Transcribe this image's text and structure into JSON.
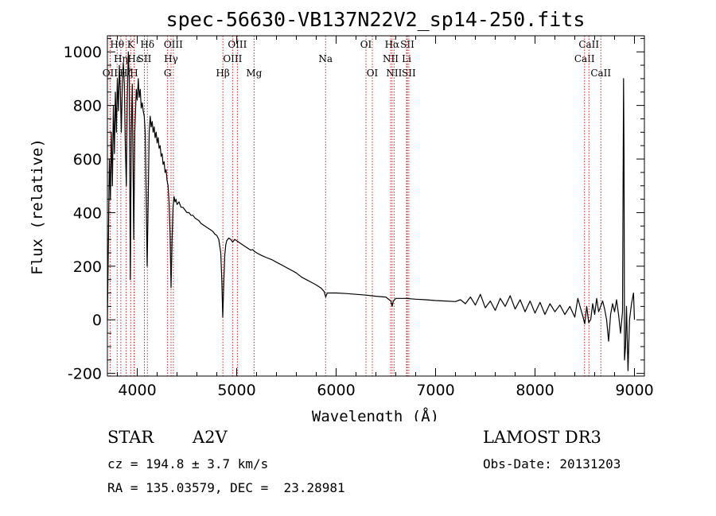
{
  "chart_data": {
    "type": "line",
    "title": "spec-56630-VB137N22V2_sp14-250.fits",
    "xlabel": "Wavelength (Å)",
    "ylabel": "Flux (relative)",
    "xlim": [
      3700,
      9100
    ],
    "ylim": [
      -210,
      1060
    ],
    "xticks": [
      4000,
      5000,
      6000,
      7000,
      8000,
      9000
    ],
    "yticks": [
      -200,
      0,
      200,
      400,
      600,
      800,
      1000
    ],
    "line_color": "#000000",
    "marker_color": "#cc2222",
    "spectral_lines": [
      {
        "name": "OII",
        "wavelength": 3727,
        "row": 2
      },
      {
        "name": "Hθ",
        "wavelength": 3798,
        "row": 0
      },
      {
        "name": "Hη",
        "wavelength": 3835,
        "row": 1
      },
      {
        "name": "Hζ",
        "wavelength": 3889,
        "row": 2
      },
      {
        "name": "K",
        "wavelength": 3934,
        "row": 0
      },
      {
        "name": "H",
        "wavelength": 3968,
        "row": 2
      },
      {
        "name": "Hε",
        "wavelength": 3970,
        "row": 1
      },
      {
        "name": "SII",
        "wavelength": 4072,
        "row": 1
      },
      {
        "name": "Hδ",
        "wavelength": 4102,
        "row": 0
      },
      {
        "name": "G",
        "wavelength": 4305,
        "row": 2
      },
      {
        "name": "Hγ",
        "wavelength": 4340,
        "row": 1
      },
      {
        "name": "OIII",
        "wavelength": 4363,
        "row": 0
      },
      {
        "name": "Hβ",
        "wavelength": 4861,
        "row": 2
      },
      {
        "name": "OIII",
        "wavelength": 4959,
        "row": 1
      },
      {
        "name": "OIII",
        "wavelength": 5007,
        "row": 0
      },
      {
        "name": "Mg",
        "wavelength": 5175,
        "row": 2
      },
      {
        "name": "Na",
        "wavelength": 5894,
        "row": 1
      },
      {
        "name": "OI",
        "wavelength": 6300,
        "row": 0
      },
      {
        "name": "OI",
        "wavelength": 6364,
        "row": 2
      },
      {
        "name": "NII",
        "wavelength": 6548,
        "row": 1
      },
      {
        "name": "Hα",
        "wavelength": 6563,
        "row": 0
      },
      {
        "name": "NII",
        "wavelength": 6583,
        "row": 2
      },
      {
        "name": "Li",
        "wavelength": 6708,
        "row": 1
      },
      {
        "name": "SII",
        "wavelength": 6716,
        "row": 0
      },
      {
        "name": "SII",
        "wavelength": 6731,
        "row": 2
      },
      {
        "name": "CaII",
        "wavelength": 8498,
        "row": 1
      },
      {
        "name": "CaII",
        "wavelength": 8542,
        "row": 0
      },
      {
        "name": "CaII",
        "wavelength": 8662,
        "row": 2
      }
    ],
    "series": [
      {
        "name": "flux",
        "points": [
          [
            3700,
            0
          ],
          [
            3710,
            300
          ],
          [
            3720,
            600
          ],
          [
            3730,
            450
          ],
          [
            3740,
            700
          ],
          [
            3750,
            500
          ],
          [
            3760,
            800
          ],
          [
            3770,
            620
          ],
          [
            3780,
            850
          ],
          [
            3790,
            700
          ],
          [
            3800,
            900
          ],
          [
            3810,
            780
          ],
          [
            3820,
            950
          ],
          [
            3830,
            850
          ],
          [
            3840,
            700
          ],
          [
            3850,
            880
          ],
          [
            3860,
            960
          ],
          [
            3870,
            880
          ],
          [
            3880,
            650
          ],
          [
            3890,
            500
          ],
          [
            3900,
            820
          ],
          [
            3910,
            1000
          ],
          [
            3920,
            900
          ],
          [
            3930,
            150
          ],
          [
            3940,
            700
          ],
          [
            3950,
            880
          ],
          [
            3960,
            500
          ],
          [
            3965,
            300
          ],
          [
            3975,
            700
          ],
          [
            3990,
            860
          ],
          [
            4000,
            820
          ],
          [
            4010,
            900
          ],
          [
            4020,
            830
          ],
          [
            4030,
            860
          ],
          [
            4040,
            790
          ],
          [
            4050,
            810
          ],
          [
            4060,
            780
          ],
          [
            4070,
            760
          ],
          [
            4080,
            700
          ],
          [
            4090,
            450
          ],
          [
            4100,
            200
          ],
          [
            4110,
            450
          ],
          [
            4120,
            700
          ],
          [
            4130,
            760
          ],
          [
            4140,
            720
          ],
          [
            4150,
            740
          ],
          [
            4160,
            700
          ],
          [
            4170,
            720
          ],
          [
            4180,
            680
          ],
          [
            4190,
            700
          ],
          [
            4200,
            660
          ],
          [
            4210,
            680
          ],
          [
            4220,
            640
          ],
          [
            4230,
            650
          ],
          [
            4240,
            610
          ],
          [
            4250,
            620
          ],
          [
            4260,
            580
          ],
          [
            4270,
            590
          ],
          [
            4280,
            550
          ],
          [
            4290,
            560
          ],
          [
            4300,
            520
          ],
          [
            4310,
            500
          ],
          [
            4320,
            440
          ],
          [
            4330,
            320
          ],
          [
            4340,
            120
          ],
          [
            4350,
            300
          ],
          [
            4360,
            420
          ],
          [
            4370,
            460
          ],
          [
            4380,
            440
          ],
          [
            4390,
            450
          ],
          [
            4400,
            430
          ],
          [
            4420,
            440
          ],
          [
            4440,
            420
          ],
          [
            4460,
            420
          ],
          [
            4480,
            410
          ],
          [
            4500,
            400
          ],
          [
            4520,
            400
          ],
          [
            4540,
            390
          ],
          [
            4560,
            390
          ],
          [
            4580,
            380
          ],
          [
            4600,
            375
          ],
          [
            4620,
            370
          ],
          [
            4640,
            360
          ],
          [
            4660,
            355
          ],
          [
            4680,
            350
          ],
          [
            4700,
            345
          ],
          [
            4720,
            340
          ],
          [
            4740,
            335
          ],
          [
            4760,
            330
          ],
          [
            4780,
            320
          ],
          [
            4800,
            315
          ],
          [
            4820,
            300
          ],
          [
            4840,
            250
          ],
          [
            4850,
            150
          ],
          [
            4860,
            10
          ],
          [
            4870,
            140
          ],
          [
            4880,
            240
          ],
          [
            4890,
            280
          ],
          [
            4900,
            295
          ],
          [
            4920,
            305
          ],
          [
            4940,
            300
          ],
          [
            4960,
            290
          ],
          [
            4980,
            300
          ],
          [
            5000,
            295
          ],
          [
            5020,
            290
          ],
          [
            5040,
            285
          ],
          [
            5060,
            280
          ],
          [
            5080,
            275
          ],
          [
            5100,
            270
          ],
          [
            5120,
            265
          ],
          [
            5140,
            260
          ],
          [
            5160,
            262
          ],
          [
            5180,
            255
          ],
          [
            5200,
            250
          ],
          [
            5250,
            240
          ],
          [
            5300,
            232
          ],
          [
            5350,
            225
          ],
          [
            5400,
            215
          ],
          [
            5450,
            205
          ],
          [
            5500,
            195
          ],
          [
            5550,
            185
          ],
          [
            5600,
            175
          ],
          [
            5650,
            160
          ],
          [
            5700,
            150
          ],
          [
            5750,
            140
          ],
          [
            5800,
            130
          ],
          [
            5850,
            118
          ],
          [
            5880,
            105
          ],
          [
            5895,
            85
          ],
          [
            5910,
            100
          ],
          [
            5950,
            100
          ],
          [
            6000,
            100
          ],
          [
            6100,
            98
          ],
          [
            6200,
            95
          ],
          [
            6300,
            92
          ],
          [
            6400,
            88
          ],
          [
            6500,
            85
          ],
          [
            6550,
            70
          ],
          [
            6563,
            50
          ],
          [
            6575,
            70
          ],
          [
            6600,
            80
          ],
          [
            6700,
            80
          ],
          [
            6800,
            77
          ],
          [
            6900,
            75
          ],
          [
            7000,
            72
          ],
          [
            7100,
            70
          ],
          [
            7200,
            68
          ],
          [
            7250,
            75
          ],
          [
            7300,
            60
          ],
          [
            7350,
            85
          ],
          [
            7400,
            55
          ],
          [
            7450,
            95
          ],
          [
            7500,
            45
          ],
          [
            7550,
            70
          ],
          [
            7600,
            35
          ],
          [
            7650,
            80
          ],
          [
            7700,
            50
          ],
          [
            7750,
            90
          ],
          [
            7800,
            40
          ],
          [
            7850,
            75
          ],
          [
            7900,
            30
          ],
          [
            7950,
            70
          ],
          [
            8000,
            25
          ],
          [
            8050,
            65
          ],
          [
            8100,
            20
          ],
          [
            8150,
            60
          ],
          [
            8200,
            30
          ],
          [
            8250,
            55
          ],
          [
            8300,
            20
          ],
          [
            8350,
            50
          ],
          [
            8400,
            10
          ],
          [
            8430,
            80
          ],
          [
            8460,
            40
          ],
          [
            8480,
            15
          ],
          [
            8500,
            -15
          ],
          [
            8520,
            50
          ],
          [
            8540,
            -10
          ],
          [
            8560,
            0
          ],
          [
            8580,
            60
          ],
          [
            8600,
            20
          ],
          [
            8620,
            80
          ],
          [
            8640,
            30
          ],
          [
            8660,
            50
          ],
          [
            8680,
            70
          ],
          [
            8700,
            40
          ],
          [
            8720,
            0
          ],
          [
            8740,
            -80
          ],
          [
            8760,
            20
          ],
          [
            8780,
            60
          ],
          [
            8800,
            30
          ],
          [
            8820,
            75
          ],
          [
            8840,
            20
          ],
          [
            8860,
            -50
          ],
          [
            8880,
            30
          ],
          [
            8890,
            900
          ],
          [
            8895,
            600
          ],
          [
            8900,
            -150
          ],
          [
            8910,
            -100
          ],
          [
            8920,
            50
          ],
          [
            8935,
            -190
          ],
          [
            8950,
            0
          ],
          [
            8970,
            60
          ],
          [
            8990,
            100
          ],
          [
            9000,
            0
          ]
        ]
      }
    ]
  },
  "info": {
    "object_type": "STAR",
    "spectral_class": "A2V",
    "survey": "LAMOST DR3",
    "redshift": "cz = 194.8 ± 3.7 km/s",
    "obs_date": "Obs-Date: 20131203",
    "coordinates": "RA = 135.03579, DEC =  23.28981"
  }
}
